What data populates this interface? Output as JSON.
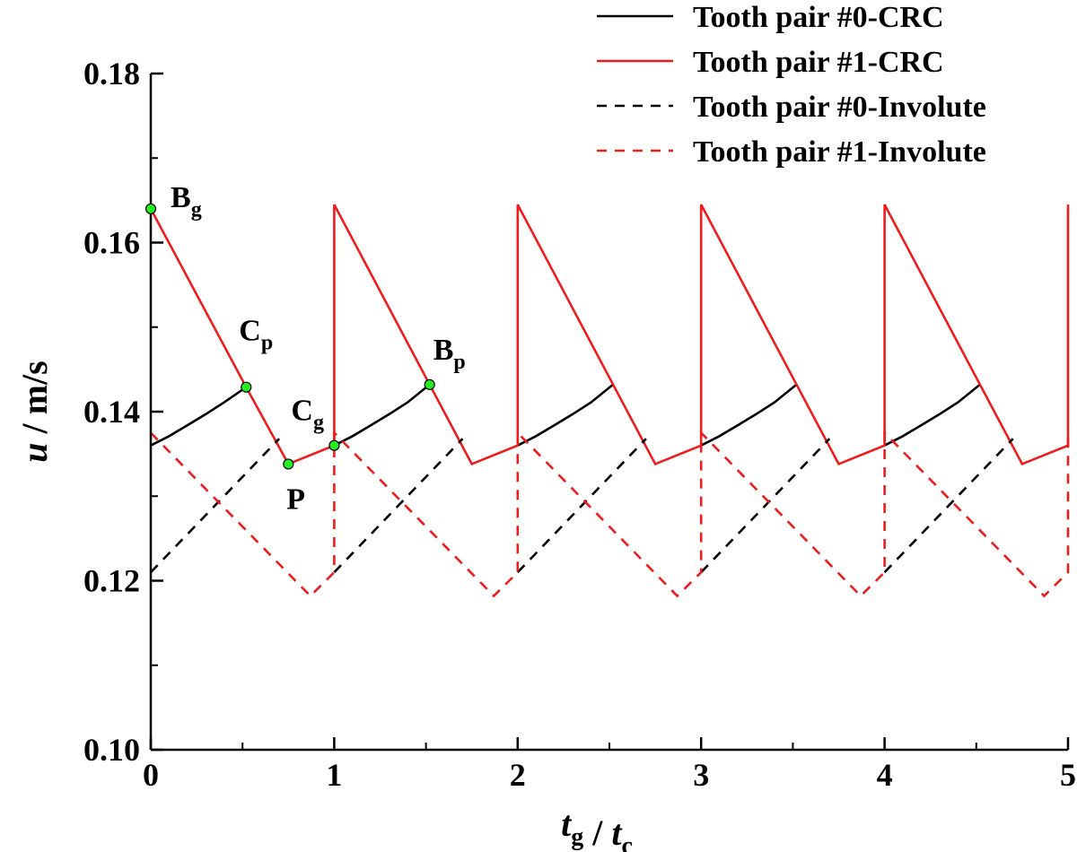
{
  "chart_data": {
    "type": "line",
    "xlabel": {
      "main": "t",
      "sub1": "g",
      "mid": " / ",
      "main2": "t",
      "sub2": "c"
    },
    "ylabel": {
      "main": "u",
      "rest": " / m/s"
    },
    "xlim": [
      0,
      5
    ],
    "ylim": [
      0.1,
      0.18
    ],
    "xticks": [
      0,
      1,
      2,
      3,
      4,
      5
    ],
    "xtick_labels": [
      "0",
      "1",
      "2",
      "3",
      "4",
      "5"
    ],
    "yticks": [
      0.1,
      0.12,
      0.14,
      0.16,
      0.18
    ],
    "ytick_labels": [
      "0.10",
      "0.12",
      "0.14",
      "0.16",
      "0.18"
    ],
    "grid": false,
    "legend_position": "top-right",
    "colors": {
      "black": "#000000",
      "red": "#ee1c1c",
      "marker": "#22ee22"
    },
    "series": [
      {
        "name": "Tooth pair #0-CRC",
        "color": "#000000",
        "dash": "solid",
        "segments": [
          {
            "x": [
              0,
              0.1,
              0.2,
              0.3,
              0.4,
              0.52
            ],
            "y": [
              0.136,
              0.1371,
              0.1384,
              0.1397,
              0.1411,
              0.1429
            ]
          },
          {
            "x": [
              1.0,
              1.1,
              1.2,
              1.3,
              1.4,
              1.52
            ],
            "y": [
              0.136,
              0.1371,
              0.1384,
              0.1397,
              0.1411,
              0.1432
            ]
          },
          {
            "x": [
              2.0,
              2.1,
              2.2,
              2.3,
              2.4,
              2.52
            ],
            "y": [
              0.136,
              0.1371,
              0.1384,
              0.1397,
              0.1411,
              0.1432
            ]
          },
          {
            "x": [
              3.0,
              3.1,
              3.2,
              3.3,
              3.4,
              3.52
            ],
            "y": [
              0.136,
              0.1371,
              0.1384,
              0.1397,
              0.1411,
              0.1432
            ]
          },
          {
            "x": [
              4.0,
              4.1,
              4.2,
              4.3,
              4.4,
              4.52
            ],
            "y": [
              0.136,
              0.1371,
              0.1384,
              0.1397,
              0.1411,
              0.1432
            ]
          }
        ]
      },
      {
        "name": "Tooth pair #1-CRC",
        "color": "#ee1c1c",
        "dash": "solid",
        "segments": [
          {
            "x": [
              0,
              0.52,
              0.75,
              1.0,
              1.0,
              1.52,
              1.75,
              2.0,
              2.0,
              2.52,
              2.75,
              3.0,
              3.0,
              3.52,
              3.75,
              4.0,
              4.0,
              4.52,
              4.75,
              5.0,
              5.0
            ],
            "y": [
              0.164,
              0.1429,
              0.1338,
              0.136,
              0.1645,
              0.1432,
              0.1338,
              0.136,
              0.1645,
              0.1432,
              0.1338,
              0.136,
              0.1645,
              0.1432,
              0.1338,
              0.136,
              0.1645,
              0.1432,
              0.1338,
              0.136,
              0.1645
            ]
          }
        ]
      },
      {
        "name": "Tooth pair #0-Involute",
        "color": "#000000",
        "dash": "dashed",
        "segments": [
          {
            "x": [
              0,
              0.7
            ],
            "y": [
              0.121,
              0.1368
            ]
          },
          {
            "x": [
              1.0,
              1.7
            ],
            "y": [
              0.121,
              0.1368
            ]
          },
          {
            "x": [
              2.0,
              2.7
            ],
            "y": [
              0.121,
              0.1368
            ]
          },
          {
            "x": [
              3.0,
              3.7
            ],
            "y": [
              0.121,
              0.1368
            ]
          },
          {
            "x": [
              4.0,
              4.7
            ],
            "y": [
              0.121,
              0.1368
            ]
          }
        ]
      },
      {
        "name": "Tooth pair #1-Involute",
        "color": "#ee1c1c",
        "dash": "dashed",
        "segments": [
          {
            "x": [
              0,
              0.87,
              1.0,
              1.0,
              1.87,
              2.0,
              2.0,
              2.87,
              3.0,
              3.0,
              3.87,
              4.0,
              4.0,
              4.87,
              5.0,
              5.0
            ],
            "y": [
              0.1375,
              0.1182,
              0.121,
              0.1375,
              0.1182,
              0.121,
              0.1375,
              0.1182,
              0.121,
              0.1375,
              0.1182,
              0.121,
              0.1375,
              0.1182,
              0.121,
              0.1375
            ]
          }
        ]
      }
    ],
    "annotations": [
      {
        "main": "B",
        "sub": "g",
        "point": [
          0,
          0.164
        ],
        "offset": [
          22,
          -2
        ]
      },
      {
        "main": "C",
        "sub": "p",
        "point": [
          0.52,
          0.1429
        ],
        "offset": [
          -8,
          -52
        ]
      },
      {
        "main": "C",
        "sub": "g",
        "point": [
          1.0,
          0.136
        ],
        "offset": [
          -48,
          -28
        ]
      },
      {
        "main": "P",
        "point": [
          0.75,
          0.1338
        ],
        "offset": [
          -2,
          50
        ]
      },
      {
        "main": "B",
        "sub": "p",
        "point": [
          1.52,
          0.1432
        ],
        "offset": [
          4,
          -28
        ]
      }
    ],
    "markers": [
      {
        "x": 0,
        "y": 0.164
      },
      {
        "x": 0.52,
        "y": 0.1429
      },
      {
        "x": 0.75,
        "y": 0.1338
      },
      {
        "x": 1.0,
        "y": 0.136
      },
      {
        "x": 1.52,
        "y": 0.1432
      }
    ]
  }
}
